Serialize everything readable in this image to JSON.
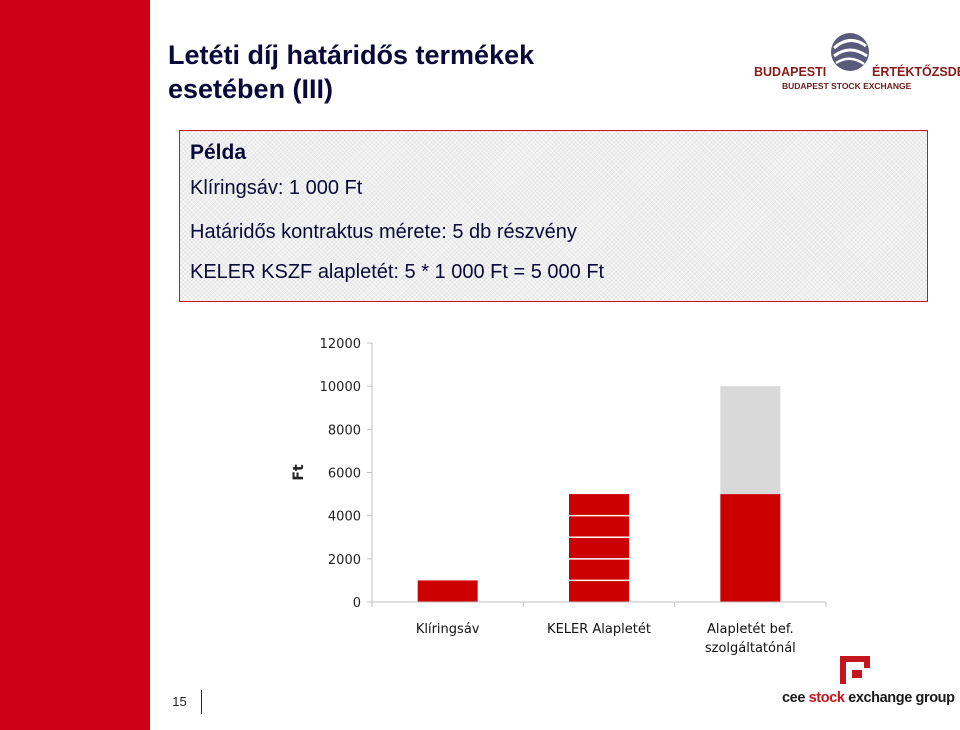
{
  "slide": {
    "title_lines": [
      "Letéti díj határidős termékek",
      "esetében (III)"
    ],
    "page_number": "15"
  },
  "logo_bse": {
    "line1_left": "BUDAPESTI",
    "line1_right": "ÉRTÉKTŐZSDE",
    "line2": "BUDAPEST STOCK EXCHANGE"
  },
  "example_box": {
    "heading": "Példa",
    "lines": [
      "Klíringsáv: 1 000 Ft",
      "Határidős kontraktus mérete: 5 db részvény",
      "KELER KSZF alapletét: 5 * 1 000 Ft = 5 000 Ft"
    ]
  },
  "footer_logo": {
    "text_prefix": "cee",
    "text_accent": "stock",
    "text_suffix": "exchange group"
  },
  "colors": {
    "brand_red": "#cc0018",
    "bar_red": "#cc0000",
    "bar_grey": "#d9d9d9",
    "title_navy": "#0a0a3a"
  },
  "chart_data": {
    "type": "bar",
    "stacked": true,
    "categories": [
      [
        "Klíringsáv"
      ],
      [
        "KELER Alapletét"
      ],
      [
        "Alapletét bef.",
        "szolgáltatónál"
      ]
    ],
    "series": [
      {
        "values": [
          1000,
          5000,
          5000
        ],
        "color": "#cc0000"
      },
      {
        "values": [
          0,
          0,
          5000
        ],
        "color": "#d9d9d9"
      }
    ],
    "ylabel": "Ft",
    "ylim": [
      0,
      12000
    ],
    "yticks": [
      0,
      2000,
      4000,
      6000,
      8000,
      10000,
      12000
    ],
    "segment_lines": [
      [],
      [
        1000,
        2000,
        3000,
        4000
      ],
      []
    ],
    "grid": false,
    "legend": "none"
  }
}
